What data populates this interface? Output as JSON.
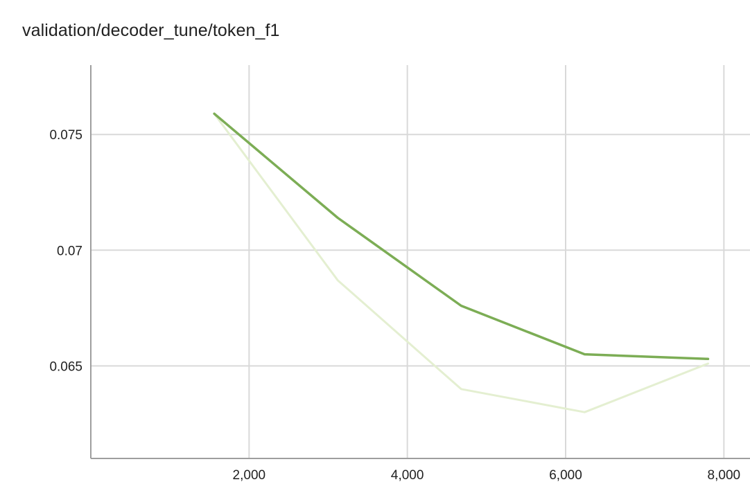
{
  "title": "validation/decoder_tune/token_f1",
  "chart_data": {
    "type": "line",
    "title": "validation/decoder_tune/token_f1",
    "xlabel": "",
    "ylabel": "",
    "xlim": [
      0,
      8330
    ],
    "ylim": [
      0.061,
      0.078
    ],
    "x_ticks": [
      2000,
      4000,
      6000,
      8000
    ],
    "x_tick_labels": [
      "2,000",
      "4,000",
      "6,000",
      "8,000"
    ],
    "y_ticks": [
      0.065,
      0.07,
      0.075
    ],
    "y_tick_labels": [
      "0.065",
      "0.07",
      "0.075"
    ],
    "grid": true,
    "legend": "none",
    "series": [
      {
        "role": "raw",
        "color": "#e4efd1",
        "x": [
          1560,
          3120,
          4680,
          6240,
          7800
        ],
        "values": [
          0.0759,
          0.0687,
          0.064,
          0.063,
          0.0651
        ]
      },
      {
        "role": "smoothed",
        "color": "#7cad55",
        "x": [
          1560,
          3120,
          4680,
          6240,
          7800
        ],
        "values": [
          0.0759,
          0.0714,
          0.0676,
          0.0655,
          0.0653
        ]
      }
    ]
  },
  "colors": {
    "grid": "#d9d9d9",
    "axis": "#9e9e9e",
    "text": "#212121"
  }
}
